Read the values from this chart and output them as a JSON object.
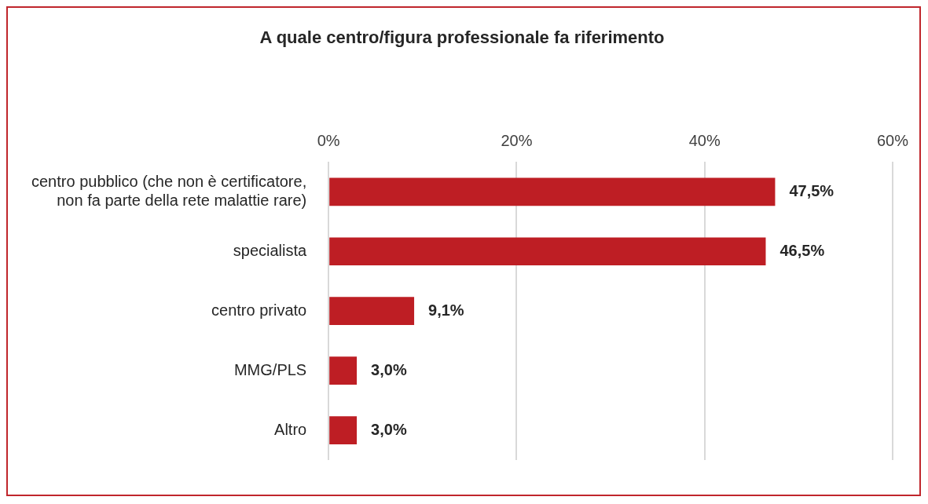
{
  "chart_data": {
    "type": "bar",
    "orientation": "horizontal",
    "title": "A quale centro/figura professionale fa riferimento",
    "categories": [
      "centro pubblico (che non è certificatore, non fa parte della rete malattie rare)",
      "specialista",
      "centro privato",
      "MMG/PLS",
      "Altro"
    ],
    "values": [
      47.5,
      46.5,
      9.1,
      3.0,
      3.0
    ],
    "value_labels": [
      "47,5%",
      "46,5%",
      "9,1%",
      "3,0%",
      "3,0%"
    ],
    "color": "#be1e24",
    "xlim": [
      0,
      60
    ],
    "xticks": [
      {
        "value": 0,
        "label": "0%"
      },
      {
        "value": 20,
        "label": "20%"
      },
      {
        "value": 40,
        "label": "40%"
      },
      {
        "value": 60,
        "label": "60%"
      }
    ],
    "grid": "x",
    "legend": false
  }
}
